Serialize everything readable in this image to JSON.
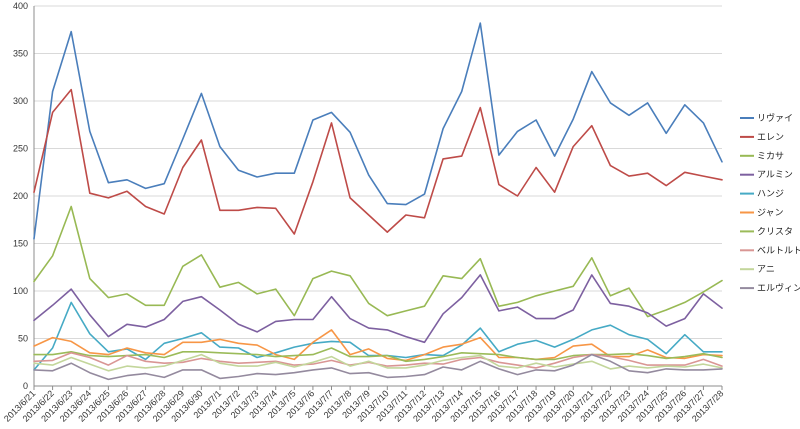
{
  "chart_data": {
    "type": "line",
    "title": "",
    "xlabel": "",
    "ylabel": "",
    "ylim": [
      0,
      400
    ],
    "yticks": [
      0,
      50,
      100,
      150,
      200,
      250,
      300,
      350,
      400
    ],
    "grid": true,
    "legend_position": "right",
    "categories": [
      "2013/6/21",
      "2013/6/22",
      "2013/6/23",
      "2013/6/24",
      "2013/6/25",
      "2013/6/26",
      "2013/6/27",
      "2013/6/28",
      "2013/6/29",
      "2013/6/30",
      "2013/7/1",
      "2013/7/2",
      "2013/7/3",
      "2013/7/4",
      "2013/7/5",
      "2013/7/6",
      "2013/7/7",
      "2013/7/8",
      "2013/7/9",
      "2013/7/10",
      "2013/7/11",
      "2013/7/12",
      "2013/7/13",
      "2013/7/14",
      "2013/7/15",
      "2013/7/16",
      "2013/7/17",
      "2013/7/18",
      "2013/7/19",
      "2013/7/20",
      "2013/7/21",
      "2013/7/22",
      "2013/7/23",
      "2013/7/24",
      "2013/7/25",
      "2013/7/26",
      "2013/7/27",
      "2013/7/28"
    ],
    "series": [
      {
        "name": "リヴァイ",
        "color": "#4a7ebb",
        "values": [
          155,
          310,
          373,
          268,
          214,
          217,
          208,
          213,
          260,
          308,
          252,
          227,
          220,
          224,
          224,
          280,
          288,
          267,
          222,
          192,
          191,
          202,
          271,
          310,
          382,
          243,
          268,
          280,
          242,
          281,
          331,
          298,
          285,
          298,
          266,
          296,
          277,
          236
        ]
      },
      {
        "name": "エレン",
        "color": "#be4b48",
        "values": [
          204,
          288,
          312,
          203,
          198,
          205,
          189,
          181,
          230,
          259,
          185,
          185,
          188,
          187,
          160,
          215,
          277,
          198,
          180,
          162,
          180,
          177,
          239,
          242,
          293,
          212,
          200,
          230,
          204,
          252,
          274,
          232,
          221,
          224,
          211,
          225,
          221,
          217
        ]
      },
      {
        "name": "ミカサ",
        "color": "#98b954",
        "values": [
          110,
          137,
          189,
          113,
          93,
          97,
          85,
          85,
          126,
          138,
          104,
          109,
          97,
          102,
          74,
          113,
          121,
          116,
          87,
          74,
          79,
          84,
          116,
          113,
          134,
          84,
          88,
          95,
          100,
          105,
          135,
          95,
          103,
          73,
          80,
          88,
          99,
          111
        ]
      },
      {
        "name": "アルミン",
        "color": "#7d60a0",
        "values": [
          69,
          85,
          102,
          75,
          52,
          65,
          62,
          70,
          89,
          94,
          80,
          65,
          57,
          68,
          70,
          70,
          94,
          71,
          61,
          59,
          52,
          46,
          76,
          93,
          117,
          79,
          83,
          71,
          71,
          80,
          117,
          87,
          84,
          77,
          63,
          71,
          97,
          82
        ]
      },
      {
        "name": "ハンジ",
        "color": "#46aac5",
        "values": [
          17,
          40,
          88,
          55,
          36,
          39,
          28,
          45,
          50,
          56,
          41,
          40,
          30,
          35,
          41,
          45,
          47,
          46,
          32,
          32,
          30,
          33,
          32,
          43,
          61,
          36,
          44,
          48,
          41,
          49,
          59,
          64,
          54,
          49,
          34,
          54,
          36,
          36
        ]
      },
      {
        "name": "ジャン",
        "color": "#f79646",
        "values": [
          42,
          51,
          47,
          35,
          33,
          40,
          35,
          33,
          46,
          46,
          49,
          45,
          43,
          33,
          28,
          46,
          59,
          33,
          39,
          29,
          27,
          33,
          41,
          44,
          51,
          30,
          30,
          28,
          30,
          42,
          44,
          31,
          31,
          38,
          30,
          29,
          33,
          32
        ]
      },
      {
        "name": "クリスタ",
        "color": "#9bbb59",
        "values": [
          33,
          33,
          36,
          32,
          31,
          32,
          33,
          30,
          36,
          36,
          35,
          34,
          33,
          31,
          32,
          33,
          40,
          31,
          31,
          32,
          26,
          28,
          31,
          35,
          34,
          33,
          30,
          28,
          28,
          32,
          33,
          33,
          34,
          32,
          29,
          31,
          34,
          30
        ]
      },
      {
        "name": "ベルトルト",
        "color": "#d99694",
        "values": [
          26,
          27,
          35,
          30,
          22,
          32,
          26,
          24,
          25,
          29,
          26,
          24,
          25,
          26,
          22,
          23,
          27,
          22,
          25,
          21,
          22,
          24,
          23,
          28,
          30,
          25,
          22,
          19,
          24,
          30,
          33,
          31,
          27,
          22,
          22,
          22,
          28,
          21
        ]
      },
      {
        "name": "アニ",
        "color": "#c3d69b",
        "values": [
          24,
          22,
          30,
          23,
          16,
          21,
          19,
          21,
          27,
          33,
          24,
          21,
          21,
          25,
          20,
          25,
          31,
          21,
          26,
          19,
          19,
          22,
          27,
          30,
          32,
          21,
          19,
          24,
          20,
          23,
          26,
          18,
          21,
          19,
          21,
          20,
          23,
          19
        ]
      },
      {
        "name": "エルヴィン",
        "color": "#948a9e",
        "values": [
          17,
          16,
          24,
          14,
          7,
          11,
          13,
          9,
          17,
          17,
          8,
          10,
          13,
          12,
          14,
          17,
          19,
          13,
          14,
          9,
          10,
          12,
          20,
          17,
          26,
          18,
          12,
          17,
          16,
          22,
          33,
          26,
          16,
          14,
          18,
          17,
          17,
          18
        ]
      }
    ]
  }
}
